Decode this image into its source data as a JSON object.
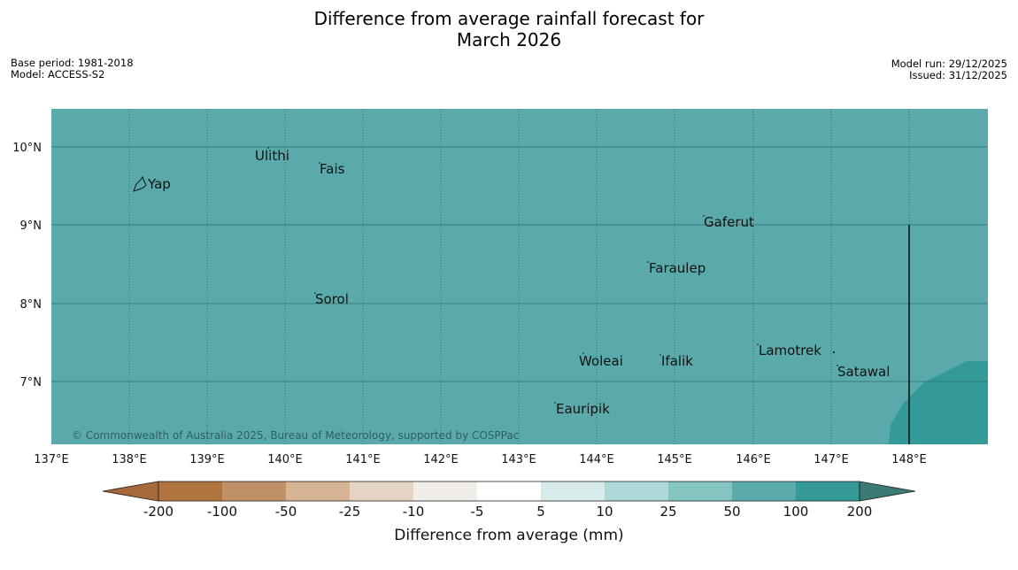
{
  "title": {
    "line1": "Difference from average rainfall forecast for",
    "line2": "March 2026"
  },
  "meta_left": {
    "base_period": "Base period: 1981-2018",
    "model": "Model: ACCESS-S2"
  },
  "meta_right": {
    "model_run": "Model run: 29/12/2025",
    "issued": "Issued: 31/12/2025"
  },
  "map": {
    "lat_labels": [
      "10°N",
      "9°N",
      "8°N",
      "7°N"
    ],
    "lon_labels": [
      "137°E",
      "138°E",
      "139°E",
      "140°E",
      "141°E",
      "142°E",
      "143°E",
      "144°E",
      "145°E",
      "146°E",
      "147°E",
      "148°E"
    ],
    "places": {
      "yap": "Yap",
      "ulithi": "Ulithi",
      "fais": "Fais",
      "gaferut": "Gaferut",
      "faraulep": "Faraulep",
      "sorol": "Sorol",
      "woleai": "Woleai",
      "ifalik": "Ifalik",
      "lamotrek": "Lamotrek",
      "satawal": "Satawal",
      "eauripik": "Eauripik"
    },
    "copyright": "© Commonwealth of Australia 2025, Bureau of Meteorology, supported by COSPPac",
    "colors": {
      "fill_50_100": "#5aaaab",
      "fill_100_200": "#339a97"
    }
  },
  "colorbar": {
    "ticks": [
      "-200",
      "-100",
      "-50",
      "-25",
      "-10",
      "-5",
      "5",
      "10",
      "25",
      "50",
      "100",
      "200"
    ],
    "label": "Difference from average (mm)",
    "colors": [
      "#a8693a",
      "#b0743e",
      "#c09167",
      "#d6b494",
      "#e5d3c3",
      "#f1ede8",
      "#ffffff",
      "#d6ebea",
      "#aed9d8",
      "#84c4c1",
      "#5aaaab",
      "#339a97",
      "#3a7a77"
    ]
  }
}
